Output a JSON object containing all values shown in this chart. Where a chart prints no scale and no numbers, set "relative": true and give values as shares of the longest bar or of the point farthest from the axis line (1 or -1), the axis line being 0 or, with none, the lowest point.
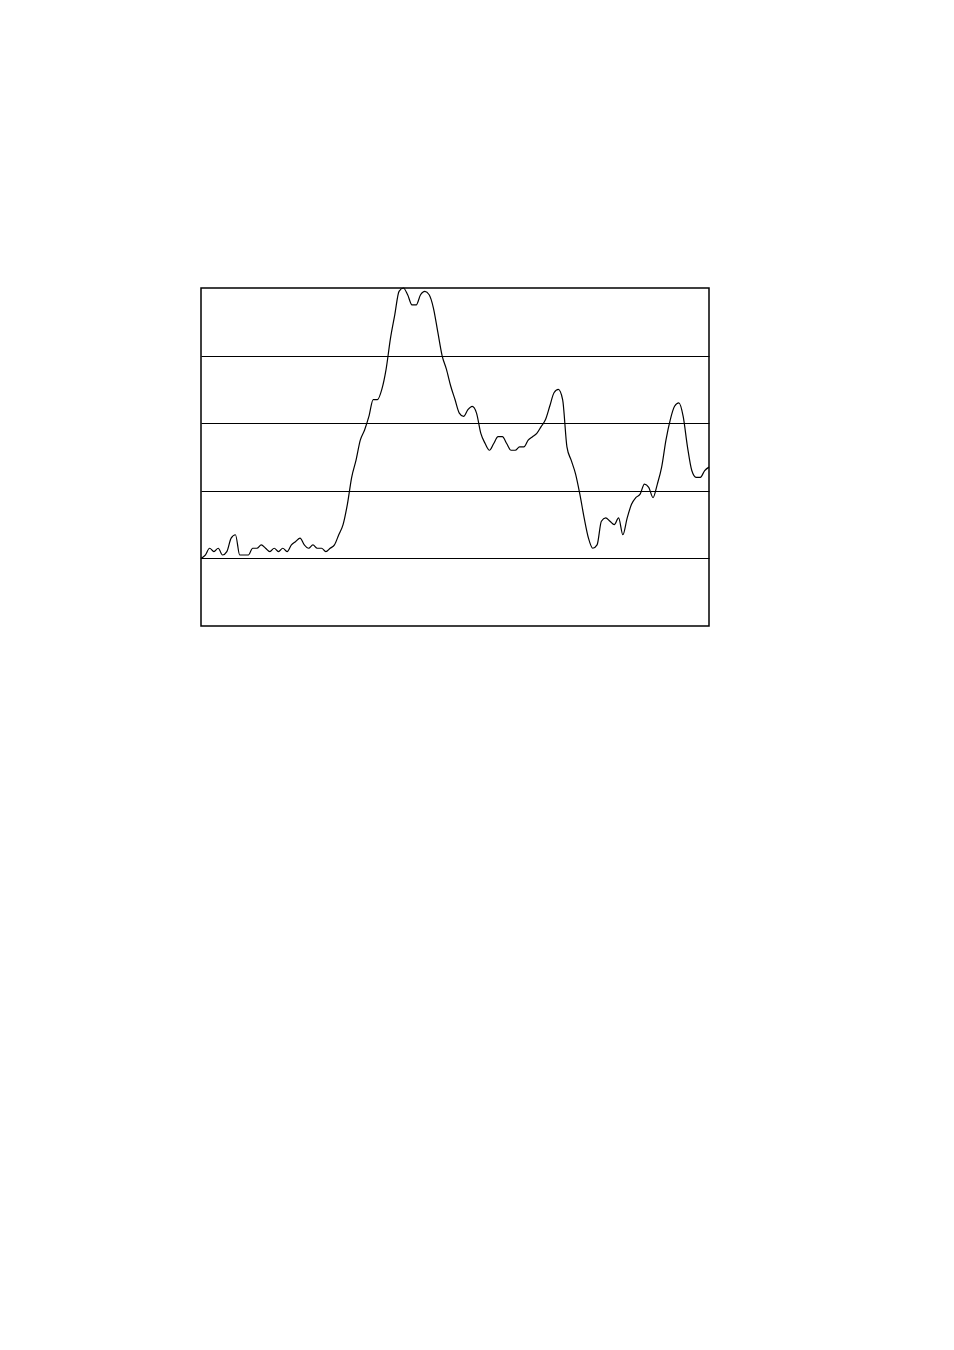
{
  "chart_data": {
    "type": "line",
    "relative": true,
    "grid": "y",
    "color": "#000000",
    "categories": [
      null,
      null,
      null,
      null,
      null,
      null,
      null,
      null,
      null,
      null,
      null,
      null,
      null,
      null,
      null,
      null,
      null,
      null,
      null,
      null,
      null,
      null,
      null,
      null,
      null,
      null,
      null,
      null,
      null,
      null,
      null,
      null,
      null,
      null,
      null,
      null,
      null,
      null,
      null,
      null,
      null,
      null,
      null,
      null,
      null,
      null,
      null,
      null,
      null,
      null,
      null,
      null,
      null,
      null,
      null,
      null,
      null,
      null,
      null,
      null,
      null,
      null,
      null,
      null,
      null,
      null,
      null,
      null,
      null,
      null,
      null,
      null,
      null,
      null,
      null,
      null,
      null,
      null,
      null,
      null,
      null,
      null,
      null,
      null,
      null,
      null,
      null,
      null,
      null,
      null,
      null,
      null,
      null,
      null,
      null,
      null,
      null,
      null,
      null,
      null,
      null,
      null,
      null,
      null,
      null,
      null,
      null,
      null,
      null,
      null,
      null,
      null,
      null,
      null,
      null,
      null,
      null,
      null,
      null
    ],
    "values": [
      0.2,
      0.21,
      0.23,
      0.22,
      0.23,
      0.21,
      0.22,
      0.26,
      0.27,
      0.21,
      0.21,
      0.21,
      0.23,
      0.23,
      0.24,
      0.23,
      0.22,
      0.23,
      0.22,
      0.23,
      0.22,
      0.24,
      0.25,
      0.26,
      0.24,
      0.23,
      0.24,
      0.23,
      0.23,
      0.22,
      0.23,
      0.24,
      0.27,
      0.3,
      0.36,
      0.44,
      0.49,
      0.55,
      0.58,
      0.62,
      0.67,
      0.67,
      0.7,
      0.76,
      0.85,
      0.92,
      0.99,
      1,
      0.98,
      0.95,
      0.95,
      0.98,
      0.99,
      0.98,
      0.94,
      0.87,
      0.8,
      0.76,
      0.71,
      0.67,
      0.63,
      0.62,
      0.64,
      0.65,
      0.63,
      0.57,
      0.54,
      0.52,
      0.54,
      0.56,
      0.56,
      0.54,
      0.52,
      0.52,
      0.53,
      0.53,
      0.55,
      0.56,
      0.57,
      0.59,
      0.61,
      0.65,
      0.69,
      0.7,
      0.67,
      0.53,
      0.49,
      0.45,
      0.39,
      0.32,
      0.26,
      0.23,
      0.24,
      0.31,
      0.32,
      0.31,
      0.3,
      0.32,
      0.27,
      0.32,
      0.36,
      0.38,
      0.39,
      0.42,
      0.41,
      0.38,
      0.42,
      0.47,
      0.55,
      0.61,
      0.65,
      0.66,
      0.62,
      0.53,
      0.46,
      0.44,
      0.44,
      0.46,
      0.47
    ]
  }
}
